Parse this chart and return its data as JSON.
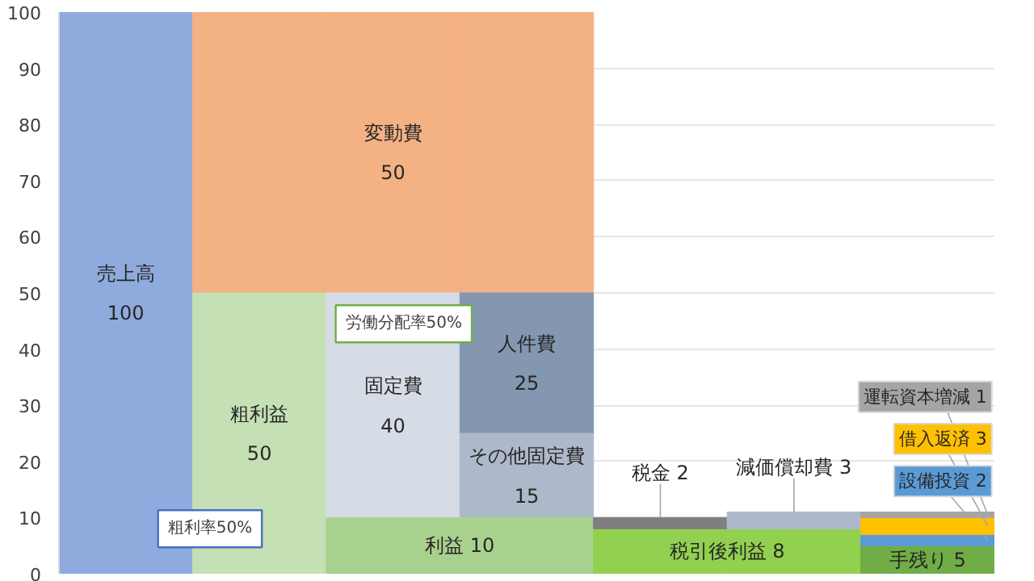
{
  "chart_data": {
    "type": "bar",
    "categories": [
      null,
      null,
      null,
      null,
      null,
      null,
      null
    ],
    "ylim": [
      0,
      100
    ],
    "yticks": [
      0,
      10,
      20,
      30,
      40,
      50,
      60,
      70,
      80,
      90,
      100
    ],
    "grid": "y",
    "series": [
      {
        "name": "売上高",
        "color": "#8faadc",
        "values": [
          100,
          null,
          null,
          null,
          null,
          null,
          null
        ],
        "base": [
          0,
          null,
          null,
          null,
          null,
          null,
          null
        ],
        "value_labels": [
          "100",
          null,
          null,
          null,
          null,
          null,
          null
        ]
      },
      {
        "name": "変動費",
        "color": "#f4b183",
        "values": [
          null,
          50,
          50,
          50,
          null,
          null,
          null
        ],
        "base": [
          null,
          50,
          50,
          50,
          null,
          null,
          null
        ],
        "value_labels": [
          null,
          null,
          "50",
          null,
          null,
          null,
          null
        ]
      },
      {
        "name": "粗利益",
        "color": "#c5e0b4",
        "values": [
          null,
          50,
          null,
          null,
          null,
          null,
          null
        ],
        "base": [
          null,
          0,
          null,
          null,
          null,
          null,
          null
        ],
        "value_labels": [
          null,
          "50",
          null,
          null,
          null,
          null,
          null
        ]
      },
      {
        "name": "固定費",
        "color": "#d6dce5",
        "values": [
          null,
          null,
          40,
          null,
          null,
          null,
          null
        ],
        "base": [
          null,
          null,
          10,
          null,
          null,
          null,
          null
        ],
        "value_labels": [
          null,
          null,
          "40",
          null,
          null,
          null,
          null
        ]
      },
      {
        "name": "人件費",
        "color": "#8497b0",
        "values": [
          null,
          null,
          null,
          25,
          null,
          null,
          null
        ],
        "base": [
          null,
          null,
          null,
          25,
          null,
          null,
          null
        ],
        "value_labels": [
          null,
          null,
          null,
          "25",
          null,
          null,
          null
        ]
      },
      {
        "name": "その他固定費",
        "color": "#adb9ca",
        "values": [
          null,
          null,
          null,
          15,
          null,
          null,
          null
        ],
        "base": [
          null,
          null,
          null,
          10,
          null,
          null,
          null
        ],
        "value_labels": [
          null,
          null,
          null,
          "15",
          null,
          null,
          null
        ]
      },
      {
        "name": "利益",
        "color": "#a9d18e",
        "values": [
          null,
          null,
          10,
          10,
          null,
          null,
          null
        ],
        "base": [
          null,
          null,
          0,
          0,
          null,
          null,
          null
        ],
        "value_labels": [
          null,
          null,
          "10",
          null,
          null,
          null,
          null
        ]
      },
      {
        "name": "税引後利益",
        "color": "#92d050",
        "values": [
          null,
          null,
          null,
          null,
          8,
          8,
          null
        ],
        "base": [
          null,
          null,
          null,
          null,
          0,
          0,
          null
        ],
        "value_labels": [
          null,
          null,
          null,
          null,
          "8",
          null,
          null
        ]
      },
      {
        "name": "税金",
        "color": "#7f7f7f",
        "values": [
          null,
          null,
          null,
          null,
          2,
          null,
          null
        ],
        "base": [
          null,
          null,
          null,
          null,
          8,
          null,
          null
        ],
        "value_labels": [
          null,
          null,
          null,
          null,
          "2",
          null,
          null
        ]
      },
      {
        "name": "減価償却費",
        "color": "#adb9ca",
        "values": [
          null,
          null,
          null,
          null,
          null,
          3,
          null
        ],
        "base": [
          null,
          null,
          null,
          null,
          null,
          8,
          null
        ],
        "value_labels": [
          null,
          null,
          null,
          null,
          null,
          "3",
          null
        ]
      },
      {
        "name": "手残り",
        "color": "#70ad47",
        "values": [
          null,
          null,
          null,
          null,
          null,
          null,
          5
        ],
        "base": [
          null,
          null,
          null,
          null,
          null,
          null,
          0
        ],
        "value_labels": [
          null,
          null,
          null,
          null,
          null,
          null,
          "5"
        ]
      },
      {
        "name": "設備投資",
        "color": "#5b9bd5",
        "values": [
          null,
          null,
          null,
          null,
          null,
          null,
          2
        ],
        "base": [
          null,
          null,
          null,
          null,
          null,
          null,
          5
        ],
        "value_labels": [
          null,
          null,
          null,
          null,
          null,
          null,
          "2"
        ]
      },
      {
        "name": "借入返済",
        "color": "#ffc000",
        "values": [
          null,
          null,
          null,
          null,
          null,
          null,
          3
        ],
        "base": [
          null,
          null,
          null,
          null,
          null,
          null,
          7
        ],
        "value_labels": [
          null,
          null,
          null,
          null,
          null,
          null,
          "3"
        ]
      },
      {
        "name": "運転資本増減",
        "color": "#a5a5a5",
        "values": [
          null,
          null,
          null,
          null,
          null,
          null,
          1
        ],
        "base": [
          null,
          null,
          null,
          null,
          null,
          null,
          10
        ],
        "value_labels": [
          null,
          null,
          null,
          null,
          null,
          null,
          "1"
        ]
      }
    ],
    "annotations": [
      "労働分配率50%",
      "粗利率50%"
    ]
  }
}
